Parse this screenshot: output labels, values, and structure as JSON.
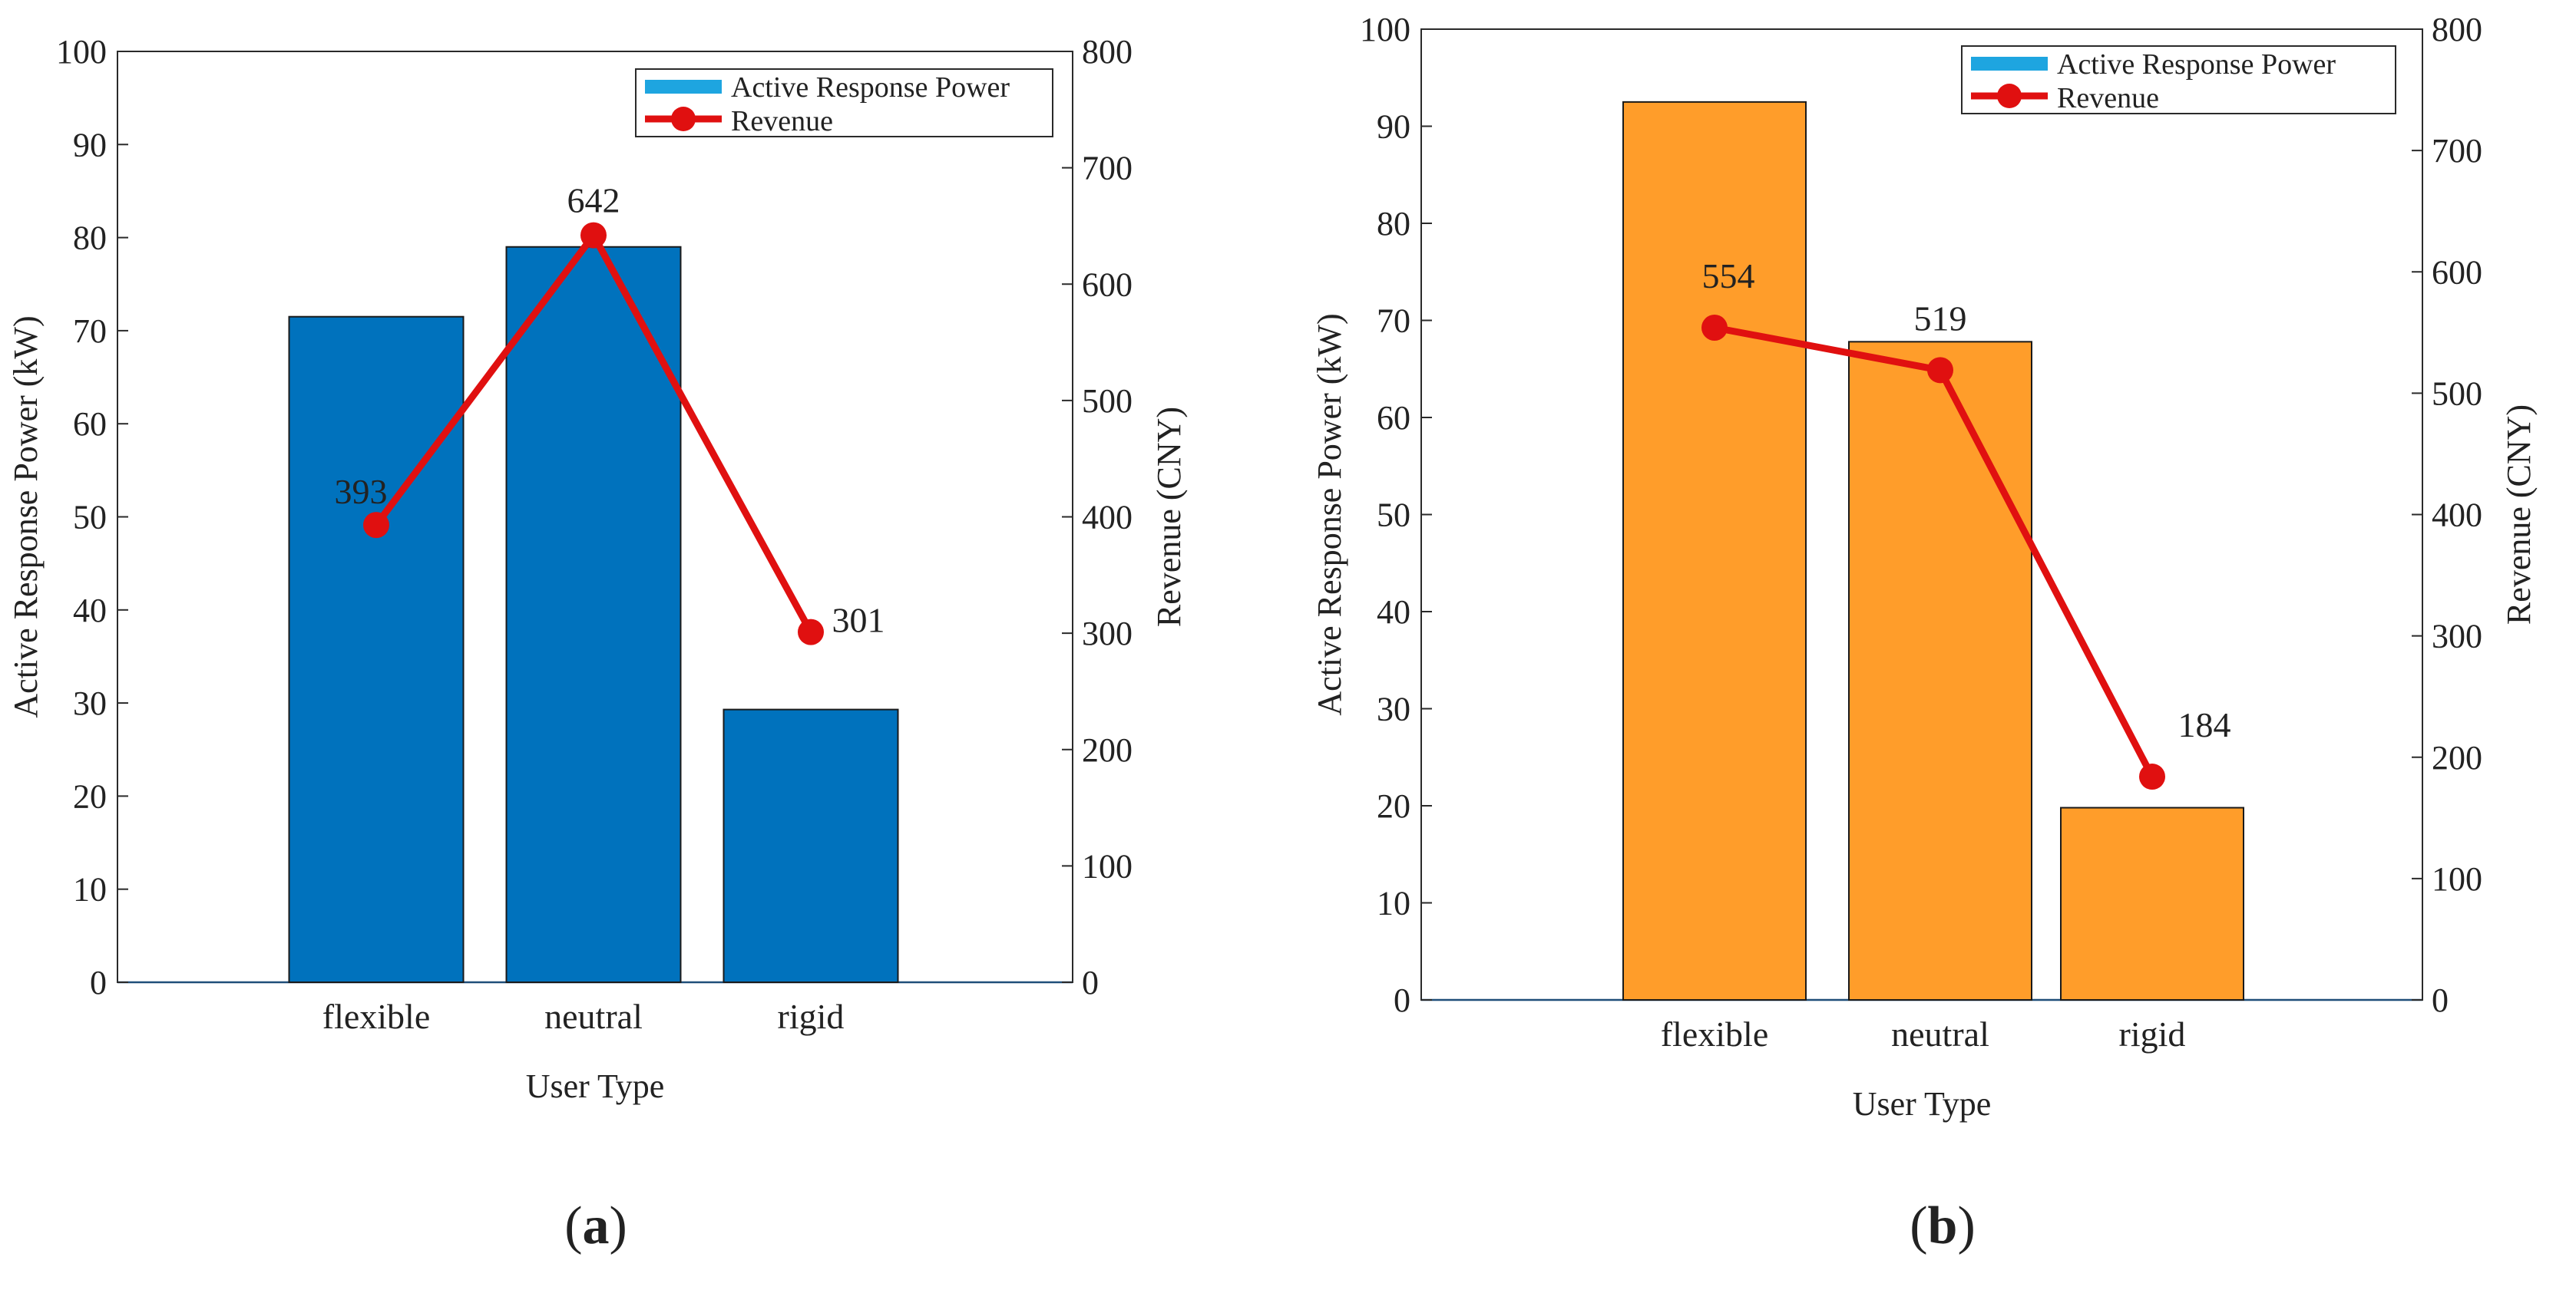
{
  "chart_data": [
    {
      "type": "bar+line",
      "panel_label": "a",
      "categories": [
        "flexible",
        "neutral",
        "rigid"
      ],
      "xlabel": "User Type",
      "ylabel_left": "Active Response Power (kW)",
      "ylabel_right": "Revenue (CNY)",
      "ylim_left": [
        0,
        100
      ],
      "ylim_right": [
        0,
        800
      ],
      "yticks_left": [
        0,
        10,
        20,
        30,
        40,
        50,
        60,
        70,
        80,
        90,
        100
      ],
      "yticks_right": [
        0,
        100,
        200,
        300,
        400,
        500,
        600,
        700,
        800
      ],
      "series": [
        {
          "name": "Active Response Power",
          "kind": "bar",
          "axis": "left",
          "values": [
            71.5,
            79,
            29.3
          ]
        },
        {
          "name": "Revenue",
          "kind": "line",
          "axis": "right",
          "values": [
            393,
            642,
            301
          ]
        }
      ],
      "bar_color": "#0072BD",
      "line_color": "#E01010",
      "legend_swatch_color": "#1EA5E0",
      "data_labels": [
        "393",
        "642",
        "301"
      ],
      "legend_entries": [
        "Active Response Power",
        "Revenue"
      ],
      "legend_position": "top-right"
    },
    {
      "type": "bar+line",
      "panel_label": "b",
      "categories": [
        "flexible",
        "neutral",
        "rigid"
      ],
      "xlabel": "User Type",
      "ylabel_left": "Active Response Power (kW)",
      "ylabel_right": "Revenue (CNY)",
      "ylim_left": [
        0,
        100
      ],
      "ylim_right": [
        0,
        800
      ],
      "yticks_left": [
        0,
        10,
        20,
        30,
        40,
        50,
        60,
        70,
        80,
        90,
        100
      ],
      "yticks_right": [
        0,
        100,
        200,
        300,
        400,
        500,
        600,
        700,
        800
      ],
      "series": [
        {
          "name": "Active Response Power",
          "kind": "bar",
          "axis": "left",
          "values": [
            92.5,
            67.8,
            19.8
          ]
        },
        {
          "name": "Revenue",
          "kind": "line",
          "axis": "right",
          "values": [
            554,
            519,
            184
          ]
        }
      ],
      "bar_color": "#FF9D2A",
      "line_color": "#E01010",
      "legend_swatch_color": "#1EA5E0",
      "data_labels": [
        "554",
        "519",
        "184"
      ],
      "legend_entries": [
        "Active Response Power",
        "Revenue"
      ],
      "legend_position": "top-right"
    }
  ]
}
